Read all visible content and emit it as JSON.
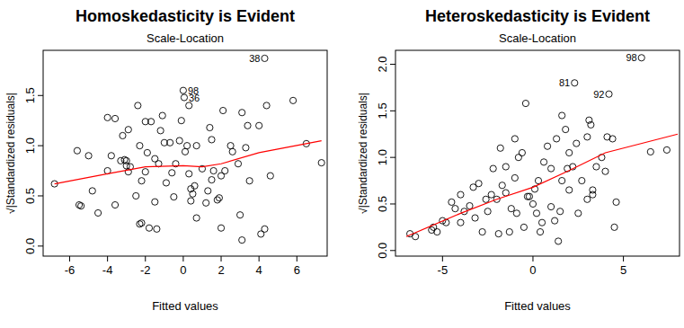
{
  "chart_data": [
    {
      "type": "scatter",
      "title": "Homoskedasticity is Evident",
      "subtitle": "Scale-Location",
      "x_label": "Fitted values",
      "y_label": "√|Standardized residuals|",
      "xlim": [
        -7.4,
        7.6
      ],
      "xticks": [
        -6,
        -4,
        -2,
        0,
        2,
        4,
        6
      ],
      "ylim": [
        -0.1,
        1.95
      ],
      "yticks": [
        {
          "value": 0,
          "label": "0.0"
        },
        {
          "value": 0.5,
          "label": "0.5"
        },
        {
          "value": 1,
          "label": "1.0"
        },
        {
          "value": 1.5,
          "label": "1.5"
        }
      ],
      "grid": false,
      "series": [
        {
          "type": "scatter",
          "marker": "circle",
          "color": "#000000",
          "x": [
            -6.8,
            -5.6,
            -5.5,
            -5.4,
            -5.0,
            -4.8,
            -4.5,
            -4.0,
            -4.0,
            -3.8,
            -3.6,
            -3.6,
            -3.3,
            -3.2,
            -3.1,
            -3.0,
            -3.0,
            -2.9,
            -2.9,
            -2.8,
            -2.5,
            -2.4,
            -2.3,
            -2.3,
            -2.2,
            -2.2,
            -2.0,
            -2.0,
            -1.9,
            -1.8,
            -1.7,
            -1.5,
            -1.5,
            -1.4,
            -1.3,
            -1.2,
            -1.1,
            -1.0,
            -0.9,
            -0.7,
            -0.6,
            -0.5,
            -0.4,
            -0.2,
            0.0,
            0.05,
            -0.1,
            0.1,
            0.2,
            0.3,
            0.3,
            0.4,
            0.4,
            0.5,
            0.6,
            0.7,
            0.7,
            1.0,
            1.2,
            1.3,
            1.4,
            1.5,
            1.5,
            1.6,
            1.8,
            1.9,
            2.0,
            2.0,
            2.1,
            2.2,
            2.5,
            2.6,
            2.9,
            3.0,
            3.1,
            3.1,
            3.3,
            3.4,
            3.5,
            4.0,
            4.1,
            4.3,
            4.3,
            4.4,
            4.6,
            5.8,
            6.5,
            7.3
          ],
          "values": [
            0.62,
            0.95,
            0.41,
            0.4,
            0.9,
            0.55,
            0.33,
            1.28,
            0.75,
            0.9,
            1.27,
            0.41,
            0.85,
            1.1,
            0.86,
            0.85,
            0.8,
            0.74,
            1.16,
            0.79,
            0.5,
            1.4,
            1.0,
            0.22,
            0.65,
            0.23,
            0.74,
            1.24,
            0.93,
            0.18,
            1.24,
            0.44,
            0.87,
            0.17,
            0.82,
            1.15,
            1.3,
            1.03,
            0.63,
            1.03,
            0.73,
            0.49,
            0.82,
            1.05,
            1.55,
            1.48,
            1.25,
            0.94,
            1.0,
            1.4,
            0.72,
            0.57,
            0.45,
            0.52,
            0.6,
            0.28,
            1.0,
            0.77,
            0.43,
            0.55,
            1.18,
            1.06,
            0.66,
            0.75,
            0.46,
            0.48,
            0.18,
            0.7,
            1.35,
            0.75,
            1.0,
            0.94,
            0.82,
            0.31,
            1.33,
            0.06,
            0.98,
            1.2,
            0.65,
            1.2,
            0.12,
            1.87,
            0.17,
            1.4,
            0.7,
            1.45,
            1.02,
            0.83
          ]
        },
        {
          "type": "line",
          "color": "#ff0000",
          "x": [
            -6.8,
            -4,
            -2,
            0,
            1,
            2,
            4,
            7.3
          ],
          "values": [
            0.62,
            0.72,
            0.79,
            0.8,
            0.79,
            0.82,
            0.93,
            1.05
          ]
        }
      ],
      "annotations": [
        {
          "text": "38",
          "x": 4.3,
          "y": 1.87
        },
        {
          "text": "98",
          "x": 0.0,
          "y": 1.55
        },
        {
          "text": "36",
          "x": 0.05,
          "y": 1.48
        }
      ]
    },
    {
      "type": "scatter",
      "title": "Heteroskedasticity is Evident",
      "subtitle": "Scale-Location",
      "x_label": "Fitted values",
      "y_label": "√|Standardized residuals|",
      "xlim": [
        -7.6,
        8.1
      ],
      "xticks": [
        -5,
        0,
        5
      ],
      "ylim": [
        -0.06,
        2.15
      ],
      "yticks": [
        {
          "value": 0,
          "label": "0.0"
        },
        {
          "value": 0.5,
          "label": "0.5"
        },
        {
          "value": 1,
          "label": "1.0"
        },
        {
          "value": 1.5,
          "label": "1.5"
        },
        {
          "value": 2,
          "label": "2.0"
        }
      ],
      "grid": false,
      "series": [
        {
          "type": "scatter",
          "marker": "circle",
          "color": "#000000",
          "x": [
            -6.8,
            -5.6,
            -5.5,
            -5.3,
            -5.0,
            -4.8,
            -4.5,
            -4.3,
            -4.0,
            -4.0,
            -3.8,
            -3.5,
            -3.3,
            -3.2,
            -3.0,
            -2.8,
            -2.6,
            -2.5,
            -2.3,
            -2.2,
            -2.0,
            -1.9,
            -1.8,
            -1.7,
            -1.5,
            -1.5,
            -1.3,
            -1.2,
            -1.0,
            -1.0,
            -0.9,
            -0.8,
            -0.6,
            -0.5,
            -0.4,
            -0.3,
            -0.2,
            0.0,
            0.1,
            0.2,
            0.3,
            0.4,
            0.5,
            0.6,
            0.8,
            1.0,
            1.0,
            1.2,
            1.3,
            1.4,
            1.5,
            1.6,
            1.6,
            1.8,
            1.9,
            2.0,
            2.0,
            2.2,
            2.3,
            2.4,
            2.5,
            2.7,
            3.0,
            3.0,
            3.1,
            3.2,
            3.3,
            3.3,
            3.5,
            3.8,
            4.0,
            4.1,
            4.2,
            4.4,
            4.5,
            4.6,
            6.0,
            6.5,
            7.4,
            -6.5
          ],
          "values": [
            0.18,
            0.22,
            0.25,
            0.2,
            0.32,
            0.3,
            0.52,
            0.45,
            0.6,
            0.3,
            0.42,
            0.48,
            0.68,
            0.35,
            0.72,
            0.2,
            0.55,
            0.42,
            0.6,
            0.88,
            0.55,
            0.18,
            1.1,
            0.7,
            0.62,
            0.9,
            0.2,
            0.45,
            1.2,
            0.78,
            0.4,
            1.0,
            1.05,
            0.25,
            1.58,
            0.58,
            0.58,
            0.5,
            0.66,
            0.4,
            0.75,
            0.2,
            0.3,
            0.95,
            1.12,
            0.88,
            0.47,
            0.32,
            1.2,
            0.1,
            0.42,
            0.75,
            1.45,
            1.3,
            0.88,
            0.65,
            1.05,
            0.9,
            1.8,
            1.15,
            0.4,
            0.75,
            1.22,
            0.55,
            1.4,
            1.35,
            0.65,
            0.6,
            0.9,
            1.0,
            0.85,
            1.22,
            1.68,
            1.2,
            0.25,
            0.52,
            2.07,
            1.06,
            1.08,
            0.15
          ]
        },
        {
          "type": "line",
          "color": "#ff0000",
          "x": [
            -7,
            -4,
            -2,
            0,
            2,
            4,
            8
          ],
          "values": [
            0.15,
            0.4,
            0.55,
            0.68,
            0.86,
            1.05,
            1.25
          ]
        }
      ],
      "annotations": [
        {
          "text": "98",
          "x": 6.0,
          "y": 2.07
        },
        {
          "text": "81",
          "x": 2.3,
          "y": 1.8
        },
        {
          "text": "92",
          "x": 4.2,
          "y": 1.68
        }
      ]
    }
  ]
}
